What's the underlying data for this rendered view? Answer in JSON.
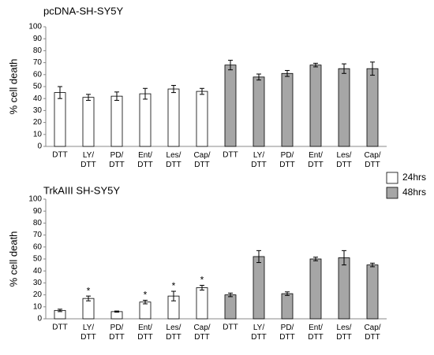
{
  "chart_data": [
    {
      "type": "bar",
      "title": "pcDNA-SH-SY5Y",
      "y_label": "% cell death",
      "categories": [
        "DTT",
        "LY/\nDTT",
        "PD/\nDTT",
        "Ent/\nDTT",
        "Les/\nDTT",
        "Cap/\nDTT",
        "DTT",
        "LY/\nDTT",
        "PD/\nDTT",
        "Ent/\nDTT",
        "Les/\nDTT",
        "Cap/\nDTT"
      ],
      "series": [
        {
          "color": "#ffffff",
          "values": [
            45,
            41,
            42,
            44,
            48,
            46,
            null,
            null,
            null,
            null,
            null,
            null
          ],
          "errors": [
            5,
            2.5,
            3.5,
            4.5,
            3,
            2.5,
            null,
            null,
            null,
            null,
            null,
            null
          ]
        },
        {
          "color": "#a6a6a6",
          "values": [
            null,
            null,
            null,
            null,
            null,
            null,
            68,
            58,
            61,
            68,
            65,
            65
          ],
          "errors": [
            null,
            null,
            null,
            null,
            null,
            null,
            4,
            2.5,
            2.5,
            1.5,
            4,
            5.5
          ]
        }
      ],
      "ylim": [
        0,
        100
      ],
      "yticks": [
        0,
        10,
        20,
        30,
        40,
        50,
        60,
        70,
        80,
        90,
        100
      ]
    },
    {
      "type": "bar",
      "title": "TrkAIII SH-SY5Y",
      "y_label": "% cell death",
      "categories": [
        "DTT",
        "LY/\nDTT",
        "PD/\nDTT",
        "Ent/\nDTT",
        "Les/\nDTT",
        "Cap/\nDTT",
        "DTT",
        "LY/\nDTT",
        "PD/\nDTT",
        "Ent/\nDTT",
        "Les/\nDTT",
        "Cap/\nDTT"
      ],
      "series": [
        {
          "name": "24hrs",
          "color": "#ffffff",
          "values": [
            7,
            17,
            6,
            14,
            19,
            26,
            null,
            null,
            null,
            null,
            null,
            null
          ],
          "errors": [
            1,
            2,
            0.5,
            1.5,
            4,
            2,
            null,
            null,
            null,
            null,
            null,
            null
          ],
          "markers": [
            null,
            "*",
            null,
            "*",
            "*",
            "*",
            null,
            null,
            null,
            null,
            null,
            null
          ]
        },
        {
          "name": "48hrs",
          "color": "#a6a6a6",
          "values": [
            null,
            null,
            null,
            null,
            null,
            null,
            20,
            52,
            21,
            50,
            51,
            45
          ],
          "errors": [
            null,
            null,
            null,
            null,
            null,
            null,
            1.5,
            5,
            1.5,
            1.5,
            6,
            1.5
          ],
          "markers": [
            null,
            "*",
            null,
            "*",
            "*",
            "*",
            null,
            null,
            null,
            null,
            null,
            null
          ]
        }
      ],
      "ylim": [
        0,
        100
      ],
      "yticks": [
        0,
        10,
        20,
        30,
        40,
        50,
        60,
        70,
        80,
        90,
        100
      ]
    }
  ]
}
